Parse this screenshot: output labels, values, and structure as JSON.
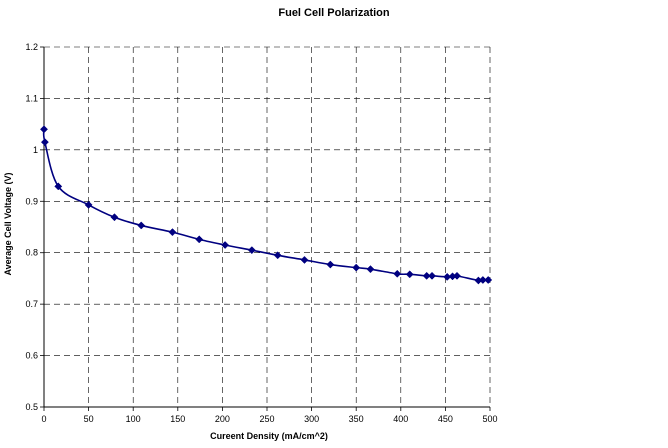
{
  "chart_data": {
    "type": "scatter",
    "title": "Fuel Cell Polarization",
    "xlabel": "Cureent Density (mA/cm^2)",
    "ylabel": "Average Cell Voltage (V)",
    "xlim": [
      0,
      500
    ],
    "ylim": [
      0.5,
      1.2
    ],
    "xticks": [
      "0",
      "50",
      "100",
      "150",
      "200",
      "250",
      "300",
      "350",
      "400",
      "450",
      "500"
    ],
    "yticks": [
      "0.5",
      "0.6",
      "0.7",
      "0.8",
      "0.9",
      "1",
      "1.1",
      "1.2"
    ],
    "grid": true,
    "line_smoothed": true,
    "color": "#000080",
    "series": [
      {
        "x": [
          0,
          1,
          16,
          50,
          79,
          109,
          144,
          174,
          203,
          233,
          262,
          292,
          321,
          350,
          366,
          396,
          410,
          429,
          435,
          452,
          458,
          463,
          487,
          492,
          498
        ],
        "y": [
          1.04,
          1.015,
          0.929,
          0.893,
          0.869,
          0.853,
          0.84,
          0.826,
          0.815,
          0.805,
          0.795,
          0.786,
          0.777,
          0.771,
          0.768,
          0.759,
          0.758,
          0.755,
          0.755,
          0.753,
          0.754,
          0.755,
          0.746,
          0.747,
          0.747
        ]
      }
    ]
  }
}
